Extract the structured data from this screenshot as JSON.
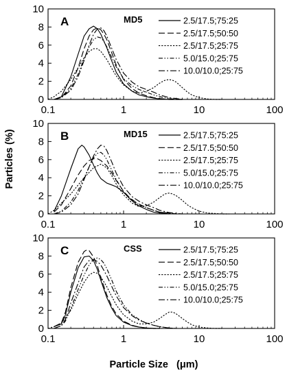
{
  "figure": {
    "ylabel": "Particles (%)",
    "xlabel": "Particle Size   (μm)"
  },
  "chart_data": [
    {
      "type": "line",
      "panel": "A",
      "sample": "MD5",
      "x_scale": "log",
      "xlim": [
        0.1,
        100
      ],
      "ylim": [
        0,
        10
      ],
      "x_ticks": [
        "0.1",
        "1",
        "10",
        "100"
      ],
      "y_ticks": [
        "0",
        "2",
        "4",
        "6",
        "8",
        "10"
      ],
      "grid": false,
      "legend_position": "top-right",
      "series": [
        {
          "name": "2.5/17.5;75:25",
          "dash": "solid",
          "x": [
            0.12,
            0.15,
            0.2,
            0.25,
            0.3,
            0.35,
            0.4,
            0.45,
            0.5,
            0.6,
            0.7,
            0.8,
            1,
            1.3,
            1.6,
            2,
            2.5,
            3,
            4,
            6
          ],
          "y": [
            0,
            0.3,
            2.5,
            5,
            7,
            7.8,
            8.1,
            7.8,
            7.2,
            5.7,
            4.2,
            3,
            1.7,
            0.9,
            0.5,
            0.3,
            0.15,
            0.05,
            0,
            0
          ]
        },
        {
          "name": "2.5/17.5;50:50",
          "dash": "long-dash",
          "x": [
            0.12,
            0.15,
            0.2,
            0.25,
            0.3,
            0.35,
            0.4,
            0.45,
            0.5,
            0.55,
            0.6,
            0.7,
            0.8,
            1,
            1.3,
            1.6,
            2,
            2.5,
            3,
            4,
            6
          ],
          "y": [
            0,
            0.2,
            1.5,
            3.5,
            5.6,
            7,
            7.7,
            7.9,
            7.7,
            7.2,
            6.6,
            5.1,
            3.8,
            2.2,
            1.2,
            0.7,
            0.4,
            0.2,
            0.1,
            0,
            0
          ]
        },
        {
          "name": "2.5/17.5;25:75",
          "dash": "dotted",
          "x": [
            0.1,
            0.12,
            0.15,
            0.2,
            0.25,
            0.3,
            0.35,
            0.4,
            0.45,
            0.5,
            0.6,
            0.7,
            0.8,
            1,
            1.3,
            1.6,
            2,
            2.5,
            3,
            3.5,
            4,
            4.5,
            5,
            6,
            7,
            8,
            10,
            13,
            16,
            20
          ],
          "y": [
            0,
            0.3,
            0.9,
            2.2,
            3.5,
            4.6,
            5.3,
            5.6,
            5.6,
            5.3,
            4.4,
            3.4,
            2.6,
            1.6,
            0.9,
            0.7,
            0.9,
            1.3,
            1.8,
            2.1,
            2.2,
            2.1,
            1.9,
            1.3,
            0.8,
            0.5,
            0.2,
            0.05,
            0,
            0
          ]
        },
        {
          "name": "5.0/15.0;25:75",
          "dash": "dash-dot-dot",
          "x": [
            0.12,
            0.15,
            0.2,
            0.25,
            0.3,
            0.35,
            0.4,
            0.45,
            0.5,
            0.55,
            0.6,
            0.7,
            0.8,
            1,
            1.3,
            1.6,
            2,
            2.5,
            3,
            4,
            5
          ],
          "y": [
            0,
            0.2,
            1.2,
            2.8,
            4.5,
            5.8,
            6.6,
            6.9,
            6.8,
            6.4,
            5.8,
            4.6,
            3.6,
            2.3,
            1.5,
            1.1,
            0.8,
            0.5,
            0.3,
            0.1,
            0
          ]
        },
        {
          "name": "10.0/10.0;25:75",
          "dash": "dash-dot",
          "x": [
            0.12,
            0.15,
            0.2,
            0.25,
            0.3,
            0.35,
            0.4,
            0.45,
            0.5,
            0.55,
            0.6,
            0.7,
            0.8,
            1,
            1.3,
            1.6,
            2,
            2.5,
            3,
            4,
            5,
            6
          ],
          "y": [
            0,
            0.2,
            1,
            2.5,
            4.3,
            6,
            7.2,
            7.8,
            7.9,
            7.6,
            7,
            5.6,
            4.4,
            2.9,
            1.9,
            1.4,
            1.1,
            0.8,
            0.5,
            0.2,
            0.1,
            0
          ]
        }
      ]
    },
    {
      "type": "line",
      "panel": "B",
      "sample": "MD15",
      "x_scale": "log",
      "xlim": [
        0.1,
        100
      ],
      "ylim": [
        0,
        10
      ],
      "x_ticks": [
        "0.1",
        "1",
        "10",
        "100"
      ],
      "y_ticks": [
        "0",
        "2",
        "4",
        "6",
        "8",
        "10"
      ],
      "grid": false,
      "legend_position": "top-right",
      "series": [
        {
          "name": "2.5/17.5;75:25",
          "dash": "solid",
          "x": [
            0.12,
            0.15,
            0.2,
            0.25,
            0.28,
            0.3,
            0.35,
            0.4,
            0.45,
            0.5,
            0.6,
            0.7,
            0.8,
            1,
            1.2,
            1.5,
            2,
            2.5,
            3,
            4
          ],
          "y": [
            0.3,
            2,
            5,
            7.2,
            7.6,
            7.4,
            6.5,
            5.4,
            4.5,
            3.9,
            3.4,
            3.2,
            3,
            2.4,
            1.7,
            1,
            0.5,
            0.2,
            0.1,
            0
          ]
        },
        {
          "name": "2.5/17.5;50:50",
          "dash": "long-dash",
          "x": [
            0.12,
            0.15,
            0.2,
            0.25,
            0.3,
            0.35,
            0.4,
            0.45,
            0.5,
            0.6,
            0.7,
            0.8,
            1,
            1.2,
            1.5,
            2,
            2.5,
            3,
            4,
            5
          ],
          "y": [
            0.2,
            1,
            2.8,
            4.3,
            5.3,
            5.9,
            6.1,
            6.1,
            5.9,
            5.3,
            4.5,
            3.7,
            2.5,
            1.8,
            1.2,
            0.7,
            0.4,
            0.2,
            0.1,
            0
          ]
        },
        {
          "name": "2.5/17.5;25:75",
          "dash": "dotted",
          "x": [
            0.1,
            0.12,
            0.15,
            0.2,
            0.25,
            0.3,
            0.4,
            0.5,
            0.6,
            0.7,
            0.8,
            1,
            1.3,
            1.6,
            2,
            2.5,
            3,
            3.5,
            4,
            4.5,
            5,
            6,
            7,
            8,
            10,
            13,
            16,
            20,
            25
          ],
          "y": [
            0,
            0.4,
            1.2,
            2.2,
            3.2,
            4,
            5.1,
            5.5,
            5.1,
            4.2,
            3.3,
            2.1,
            1.2,
            0.8,
            0.9,
            1.3,
            1.8,
            2.2,
            2.3,
            2.2,
            2,
            1.5,
            1,
            0.7,
            0.3,
            0.1,
            0.05,
            0,
            0
          ]
        },
        {
          "name": "5.0/15.0;25:75",
          "dash": "dash-dot-dot",
          "x": [
            0.12,
            0.15,
            0.2,
            0.25,
            0.3,
            0.35,
            0.4,
            0.45,
            0.5,
            0.55,
            0.6,
            0.7,
            0.8,
            1,
            1.3,
            1.6,
            2,
            2.5,
            3,
            4,
            5
          ],
          "y": [
            0,
            0.3,
            1.3,
            2.6,
            4,
            5.2,
            6.2,
            6.7,
            6.8,
            6.5,
            6,
            4.8,
            3.8,
            2.4,
            1.5,
            1,
            0.7,
            0.4,
            0.2,
            0.1,
            0
          ]
        },
        {
          "name": "10.0/10.0;25:75",
          "dash": "dash-dot",
          "x": [
            0.12,
            0.15,
            0.2,
            0.25,
            0.3,
            0.35,
            0.4,
            0.45,
            0.5,
            0.55,
            0.6,
            0.7,
            0.8,
            1,
            1.3,
            1.6,
            2,
            2.5,
            3,
            4,
            5,
            6
          ],
          "y": [
            0,
            0.2,
            1,
            2.2,
            3.8,
            5.2,
            6.4,
            7.2,
            7.6,
            7.5,
            7,
            5.7,
            4.5,
            3,
            1.9,
            1.4,
            1,
            0.7,
            0.4,
            0.15,
            0.05,
            0
          ]
        }
      ]
    },
    {
      "type": "line",
      "panel": "C",
      "sample": "CSS",
      "x_scale": "log",
      "xlim": [
        0.1,
        100
      ],
      "ylim": [
        0,
        10
      ],
      "x_ticks": [
        "0.1",
        "1",
        "10",
        "100"
      ],
      "y_ticks": [
        "0",
        "2",
        "4",
        "6",
        "8",
        "10"
      ],
      "grid": false,
      "legend_position": "top-right",
      "series": [
        {
          "name": "2.5/17.5;75:25",
          "dash": "solid",
          "x": [
            0.12,
            0.15,
            0.17,
            0.2,
            0.25,
            0.3,
            0.35,
            0.4,
            0.45,
            0.5,
            0.6,
            0.7,
            0.8,
            1,
            1.3,
            1.6,
            2,
            2.5,
            3
          ],
          "y": [
            0.2,
            0.5,
            1.5,
            4,
            6.7,
            7.9,
            8,
            7.5,
            6.5,
            5.3,
            3.4,
            2.2,
            1.4,
            0.7,
            0.3,
            0.15,
            0.05,
            0,
            0
          ]
        },
        {
          "name": "2.5/17.5;50:50",
          "dash": "long-dash",
          "x": [
            0.12,
            0.15,
            0.17,
            0.2,
            0.25,
            0.3,
            0.33,
            0.35,
            0.4,
            0.45,
            0.5,
            0.6,
            0.7,
            0.8,
            1,
            1.3,
            1.6,
            2,
            2.5,
            3
          ],
          "y": [
            0.2,
            0.6,
            1.8,
            4.5,
            7.3,
            8.5,
            8.7,
            8.6,
            7.9,
            6.9,
            5.6,
            3.7,
            2.4,
            1.6,
            0.8,
            0.35,
            0.15,
            0.05,
            0,
            0
          ]
        },
        {
          "name": "2.5/17.5;25:75",
          "dash": "dotted",
          "x": [
            0.1,
            0.12,
            0.15,
            0.2,
            0.25,
            0.3,
            0.35,
            0.4,
            0.45,
            0.5,
            0.6,
            0.7,
            0.8,
            1,
            1.3,
            1.6,
            2,
            2.5,
            3,
            3.5,
            4,
            4.5,
            5,
            6,
            7,
            8,
            10,
            13,
            16,
            20
          ],
          "y": [
            0,
            0.2,
            0.6,
            2,
            3.8,
            5.1,
            5.9,
            6.2,
            6.1,
            5.7,
            4.6,
            3.5,
            2.6,
            1.5,
            0.8,
            0.5,
            0.5,
            0.7,
            1.1,
            1.5,
            1.8,
            1.8,
            1.6,
            1.1,
            0.7,
            0.4,
            0.15,
            0.05,
            0,
            0
          ]
        },
        {
          "name": "5.0/15.0;25:75",
          "dash": "dash-dot-dot",
          "x": [
            0.12,
            0.15,
            0.17,
            0.2,
            0.25,
            0.3,
            0.35,
            0.4,
            0.45,
            0.5,
            0.55,
            0.6,
            0.7,
            0.8,
            1,
            1.3,
            1.6,
            2,
            2.5,
            3,
            4,
            5
          ],
          "y": [
            0,
            0.3,
            0.8,
            2.2,
            4.3,
            5.9,
            7,
            7.6,
            7.8,
            7.6,
            7.2,
            6.6,
            5.3,
            4.1,
            2.6,
            1.5,
            1,
            0.6,
            0.35,
            0.2,
            0.05,
            0
          ]
        },
        {
          "name": "10.0/10.0;25:75",
          "dash": "dash-dot",
          "x": [
            0.12,
            0.15,
            0.17,
            0.2,
            0.25,
            0.3,
            0.35,
            0.4,
            0.45,
            0.5,
            0.55,
            0.6,
            0.7,
            0.8,
            1,
            1.3,
            1.6,
            2,
            2.5,
            3,
            4,
            5
          ],
          "y": [
            0,
            0.3,
            1,
            2.8,
            5,
            6.8,
            7.5,
            7.6,
            7.4,
            7,
            6.4,
            5.8,
            4.6,
            3.6,
            2.3,
            1.4,
            0.9,
            0.6,
            0.35,
            0.2,
            0.05,
            0
          ]
        }
      ]
    }
  ]
}
